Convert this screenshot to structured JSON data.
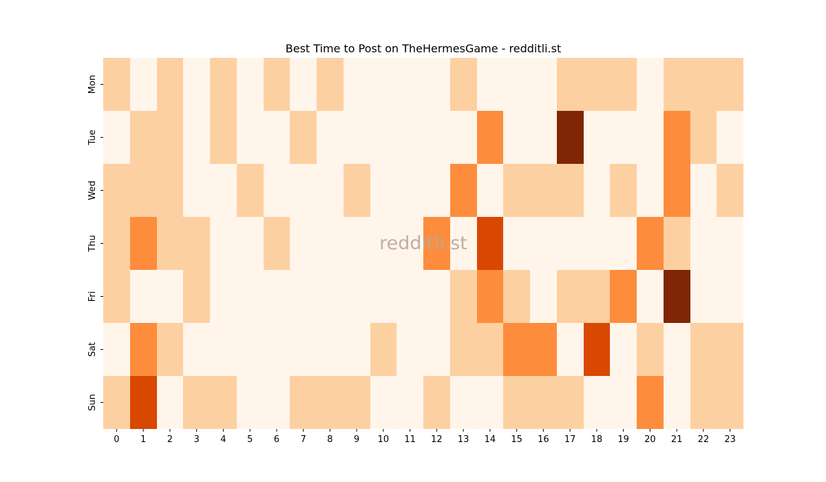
{
  "chart_data": {
    "type": "heatmap",
    "title": "Best Time to Post on TheHermesGame - redditli.st",
    "watermark": "redditli.st",
    "xlabel": "",
    "ylabel": "",
    "x_categories": [
      "0",
      "1",
      "2",
      "3",
      "4",
      "5",
      "6",
      "7",
      "8",
      "9",
      "10",
      "11",
      "12",
      "13",
      "14",
      "15",
      "16",
      "17",
      "18",
      "19",
      "20",
      "21",
      "22",
      "23"
    ],
    "y_categories": [
      "Mon",
      "Tue",
      "Wed",
      "Thu",
      "Fri",
      "Sat",
      "Sun"
    ],
    "value_range": [
      0,
      4
    ],
    "colorscale": [
      "#fff5eb",
      "#fdd0a2",
      "#fd8d3c",
      "#d94801",
      "#7f2704"
    ],
    "colorbar": false,
    "values": [
      [
        1,
        0,
        1,
        0,
        1,
        0,
        1,
        0,
        1,
        0,
        0,
        0,
        0,
        1,
        0,
        0,
        0,
        1,
        1,
        1,
        0,
        1,
        1,
        1
      ],
      [
        0,
        1,
        1,
        0,
        1,
        0,
        0,
        1,
        0,
        0,
        0,
        0,
        0,
        0,
        2,
        0,
        0,
        4,
        0,
        0,
        0,
        2,
        1,
        0
      ],
      [
        1,
        1,
        1,
        0,
        0,
        1,
        0,
        0,
        0,
        1,
        0,
        0,
        0,
        2,
        0,
        1,
        1,
        1,
        0,
        1,
        0,
        2,
        0,
        1
      ],
      [
        1,
        2,
        1,
        1,
        0,
        0,
        1,
        0,
        0,
        0,
        0,
        0,
        2,
        0,
        3,
        0,
        0,
        0,
        0,
        0,
        2,
        1,
        0,
        0
      ],
      [
        1,
        0,
        0,
        1,
        0,
        0,
        0,
        0,
        0,
        0,
        0,
        0,
        0,
        1,
        2,
        1,
        0,
        1,
        1,
        2,
        0,
        4,
        0,
        0
      ],
      [
        0,
        2,
        1,
        0,
        0,
        0,
        0,
        0,
        0,
        0,
        1,
        0,
        0,
        1,
        1,
        2,
        2,
        0,
        3,
        0,
        1,
        0,
        1,
        1
      ],
      [
        1,
        3,
        0,
        1,
        1,
        0,
        0,
        1,
        1,
        1,
        0,
        0,
        1,
        0,
        0,
        1,
        1,
        1,
        0,
        0,
        2,
        0,
        1,
        1
      ]
    ]
  }
}
